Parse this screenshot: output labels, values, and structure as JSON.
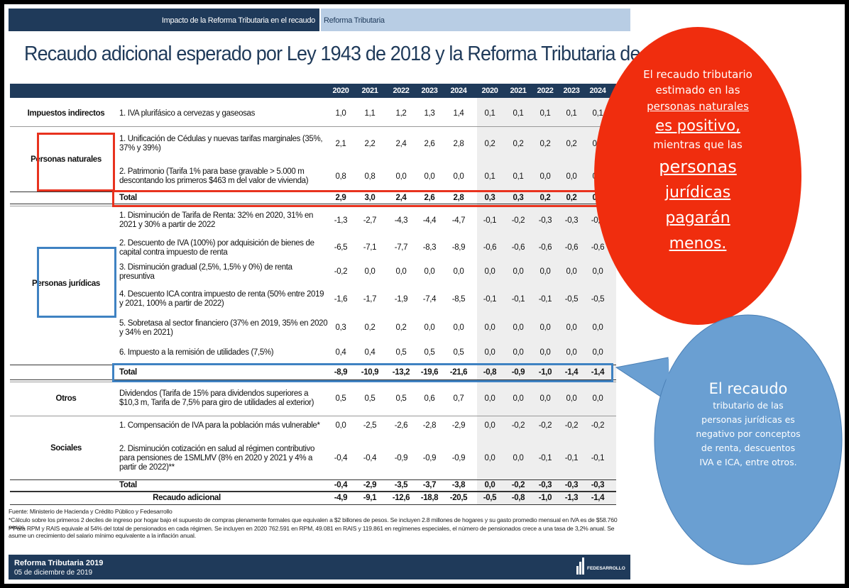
{
  "topbar": {
    "section": "Impacto de la Reforma Tributaria en el recaudo",
    "tab": "Reforma Tributaria"
  },
  "title": "Recaudo adicional esperado por Ley 1943 de 2018 y la Reforma Tributaria de 2019",
  "table": {
    "years": [
      "2020",
      "2021",
      "2022",
      "2023",
      "2024",
      "2020",
      "2021",
      "2022",
      "2023",
      "2024"
    ],
    "groups": [
      {
        "name": "Impuestos indirectos",
        "rows": [
          {
            "label": "1. IVA plurifásico a cervezas y gaseosas",
            "values": [
              "1,0",
              "1,1",
              "1,2",
              "1,3",
              "1,4",
              "0,1",
              "0,1",
              "0,1",
              "0,1",
              "0,1"
            ]
          }
        ]
      },
      {
        "name": "Personas naturales",
        "rows": [
          {
            "label": "1. Unificación de Cédulas y nuevas tarifas marginales (35%, 37% y 39%)",
            "values": [
              "2,1",
              "2,2",
              "2,4",
              "2,6",
              "2,8",
              "0,2",
              "0,2",
              "0,2",
              "0,2",
              "0,2"
            ]
          },
          {
            "label": "2. Patrimonio (Tarifa 1% para base gravable > 5.000 m descontando los primeros $463 m del valor de vivienda)",
            "values": [
              "0,8",
              "0,8",
              "0,0",
              "0,0",
              "0,0",
              "0,1",
              "0,1",
              "0,0",
              "0,0",
              "0,0"
            ]
          }
        ],
        "total": {
          "label": "Total",
          "values": [
            "2,9",
            "3,0",
            "2,4",
            "2,6",
            "2,8",
            "0,3",
            "0,3",
            "0,2",
            "0,2",
            "0,2"
          ]
        }
      },
      {
        "name": "Personas jurídicas",
        "rows": [
          {
            "label": "1. Disminución de Tarifa de Renta: 32% en 2020, 31% en 2021 y 30% a partir de 2022",
            "values": [
              "-1,3",
              "-2,7",
              "-4,3",
              "-4,4",
              "-4,7",
              "-0,1",
              "-0,2",
              "-0,3",
              "-0,3",
              "-0,3"
            ]
          },
          {
            "label": "2. Descuento de IVA (100%) por adquisición de bienes de capital contra impuesto de renta",
            "values": [
              "-6,5",
              "-7,1",
              "-7,7",
              "-8,3",
              "-8,9",
              "-0,6",
              "-0,6",
              "-0,6",
              "-0,6",
              "-0,6"
            ]
          },
          {
            "label": "3. Disminución gradual (2,5%, 1,5% y 0%) de renta presuntiva",
            "values": [
              "-0,2",
              "0,0",
              "0,0",
              "0,0",
              "0,0",
              "0,0",
              "0,0",
              "0,0",
              "0,0",
              "0,0"
            ]
          },
          {
            "label": "4. Descuento ICA contra impuesto de renta (50% entre 2019 y 2021, 100% a partir de 2022)",
            "values": [
              "-1,6",
              "-1,7",
              "-1,9",
              "-7,4",
              "-8,5",
              "-0,1",
              "-0,1",
              "-0,1",
              "-0,5",
              "-0,5"
            ]
          },
          {
            "label": "5. Sobretasa al sector financiero (37% en 2019, 35% en 2020 y 34% en 2021)",
            "values": [
              "0,3",
              "0,2",
              "0,2",
              "0,0",
              "0,0",
              "0,0",
              "0,0",
              "0,0",
              "0,0",
              "0,0"
            ]
          },
          {
            "label": "6. Impuesto a la remisión de utilidades (7,5%)",
            "values": [
              "0,4",
              "0,4",
              "0,5",
              "0,5",
              "0,5",
              "0,0",
              "0,0",
              "0,0",
              "0,0",
              "0,0"
            ]
          }
        ],
        "total": {
          "label": "Total",
          "values": [
            "-8,9",
            "-10,9",
            "-13,2",
            "-19,6",
            "-21,6",
            "-0,8",
            "-0,9",
            "-1,0",
            "-1,4",
            "-1,4"
          ]
        }
      },
      {
        "name": "Otros",
        "rows": [
          {
            "label": "Dividendos (Tarifa de 15% para dividendos superiores a $10,3 m, Tarifa de 7,5% para giro de utilidades al exterior)",
            "values": [
              "0,5",
              "0,5",
              "0,5",
              "0,6",
              "0,7",
              "0,0",
              "0,0",
              "0,0",
              "0,0",
              "0,0"
            ]
          }
        ]
      },
      {
        "name": "Sociales",
        "rows": [
          {
            "label": "1. Compensación de IVA para la población más vulnerable*",
            "values": [
              "0,0",
              "-2,5",
              "-2,6",
              "-2,8",
              "-2,9",
              "0,0",
              "-0,2",
              "-0,2",
              "-0,2",
              "-0,2"
            ]
          },
          {
            "label": "2. Disminución cotización en salud al régimen contributivo para pensiones de 1SMLMV (8% en 2020 y 2021 y 4% a partir de 2022)**",
            "values": [
              "-0,4",
              "-0,4",
              "-0,9",
              "-0,9",
              "-0,9",
              "0,0",
              "0,0",
              "-0,1",
              "-0,1",
              "-0,1"
            ]
          }
        ],
        "total": {
          "label": "Total",
          "values": [
            "-0,4",
            "-2,9",
            "-3,5",
            "-3,7",
            "-3,8",
            "0,0",
            "-0,2",
            "-0,3",
            "-0,3",
            "-0,3"
          ]
        }
      }
    ],
    "grand_total": {
      "label": "Recaudo adicional",
      "values": [
        "-4,9",
        "-9,1",
        "-12,6",
        "-18,8",
        "-20,5",
        "-0,5",
        "-0,8",
        "-1,0",
        "-1,3",
        "-1,4"
      ]
    }
  },
  "notes": [
    "Fuente: Ministerio de Hacienda y Crédito Público y Fedesarrollo",
    "*Cálculo sobre los primeros 2 deciles de ingreso por hogar bajo el supuesto de compras plenamente formales que equivalen a $2 billones de pesos. Se incluyen 2.8 millones de hogares y su gasto promedio mensual en IVA es de $58.760 pesos.",
    "**Para RPM y RAIS equivale al 54% del total de pensionados en cada régimen. Se incluyen en 2020 762.591 en RPM, 49.081 en RAIS y 119.861 en regímenes especiales, el número de pensionados crece a una tasa de 3,2% anual. Se asume un crecimiento del salario mínimo equivalente a la inflación anual."
  ],
  "footer": {
    "title": "Reforma Tributaria 2019",
    "date": "05 de diciembre de 2019",
    "logo": "FEDESARROLLO"
  },
  "callouts": {
    "red": [
      "El recaudo tributario",
      "estimado en las",
      "personas naturales",
      "es positivo,",
      "mientras que las",
      "personas",
      "jurídicas",
      "pagarán",
      "menos."
    ],
    "blue": [
      "El recaudo",
      "tributario de las",
      "personas jurídicas es",
      "negativo por conceptos",
      "de renta, descuentos",
      "IVA e ICA, entre otros."
    ]
  }
}
